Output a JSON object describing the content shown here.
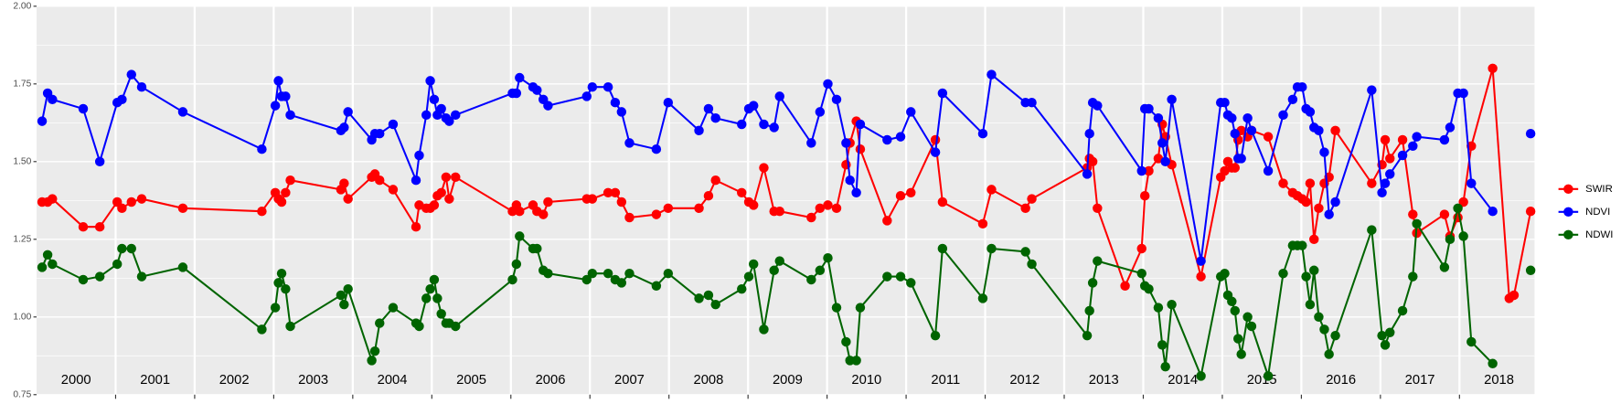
{
  "chart_data": {
    "type": "line",
    "xlim": [
      2000,
      2018.95
    ],
    "ylim": [
      0.75,
      2.0
    ],
    "yticks": [
      {
        "value": 0.75,
        "label": "0.75"
      },
      {
        "value": 1.0,
        "label": "1.00"
      },
      {
        "value": 1.25,
        "label": "1.25"
      },
      {
        "value": 1.5,
        "label": "1.50"
      },
      {
        "value": 1.75,
        "label": "1.75"
      },
      {
        "value": 2.0,
        "label": "2.00"
      }
    ],
    "yminor": [
      0.875,
      1.125,
      1.375,
      1.625,
      1.875
    ],
    "xgrid": [
      2001,
      2002,
      2003,
      2004,
      2005,
      2006,
      2007,
      2008,
      2009,
      2010,
      2011,
      2012,
      2013,
      2014,
      2015,
      2016,
      2017,
      2018
    ],
    "year_labels": [
      {
        "value": 2000.5,
        "label": "2000"
      },
      {
        "value": 2001.5,
        "label": "2001"
      },
      {
        "value": 2002.5,
        "label": "2002"
      },
      {
        "value": 2003.5,
        "label": "2003"
      },
      {
        "value": 2004.5,
        "label": "2004"
      },
      {
        "value": 2005.5,
        "label": "2005"
      },
      {
        "value": 2006.5,
        "label": "2006"
      },
      {
        "value": 2007.5,
        "label": "2007"
      },
      {
        "value": 2008.5,
        "label": "2008"
      },
      {
        "value": 2009.5,
        "label": "2009"
      },
      {
        "value": 2010.5,
        "label": "2010"
      },
      {
        "value": 2011.5,
        "label": "2011"
      },
      {
        "value": 2012.5,
        "label": "2012"
      },
      {
        "value": 2013.5,
        "label": "2013"
      },
      {
        "value": 2014.5,
        "label": "2014"
      },
      {
        "value": 2015.5,
        "label": "2015"
      },
      {
        "value": 2016.5,
        "label": "2016"
      },
      {
        "value": 2017.5,
        "label": "2017"
      },
      {
        "value": 2018.5,
        "label": "2018"
      }
    ],
    "grid": true,
    "legend": "right",
    "series": [
      {
        "name": "SWIR",
        "color": "#ff0000",
        "x": [
          2000.07,
          2000.14,
          2000.2,
          2000.59,
          2000.8,
          2001.02,
          2001.08,
          2001.2,
          2001.33,
          2001.85,
          2002.85,
          2003.02,
          2003.06,
          2003.1,
          2003.15,
          2003.21,
          2003.85,
          2003.89,
          2003.94,
          2004.24,
          2004.28,
          2004.34,
          2004.51,
          2004.8,
          2004.84,
          2004.93,
          2004.98,
          2005.03,
          2005.07,
          2005.12,
          2005.18,
          2005.22,
          2005.3,
          2006.02,
          2006.07,
          2006.11,
          2006.28,
          2006.33,
          2006.41,
          2006.47,
          2006.96,
          2007.03,
          2007.23,
          2007.32,
          2007.4,
          2007.5,
          2007.84,
          2007.99,
          2008.38,
          2008.5,
          2008.59,
          2008.92,
          2009.01,
          2009.07,
          2009.2,
          2009.33,
          2009.4,
          2009.8,
          2009.91,
          2010.01,
          2010.12,
          2010.24,
          2010.29,
          2010.37,
          2010.42,
          2010.76,
          2010.93,
          2011.06,
          2011.37,
          2011.46,
          2011.97,
          2012.08,
          2012.51,
          2012.59,
          2013.29,
          2013.32,
          2013.36,
          2013.42,
          2013.77,
          2013.98,
          2014.02,
          2014.07,
          2014.19,
          2014.24,
          2014.28,
          2014.36,
          2014.73,
          2014.98,
          2015.03,
          2015.07,
          2015.12,
          2015.16,
          2015.2,
          2015.24,
          2015.32,
          2015.37,
          2015.58,
          2015.77,
          2015.89,
          2015.95,
          2016.01,
          2016.06,
          2016.11,
          2016.16,
          2016.22,
          2016.29,
          2016.35,
          2016.43,
          2016.89,
          2017.02,
          2017.06,
          2017.12,
          2017.28,
          2017.41,
          2017.46,
          2017.81,
          2017.88,
          2017.98,
          2018.05,
          2018.15,
          2018.42,
          2018.63,
          2018.69,
          2018.9
        ],
        "values": [
          1.37,
          1.37,
          1.38,
          1.29,
          1.29,
          1.37,
          1.35,
          1.37,
          1.38,
          1.35,
          1.34,
          1.4,
          1.38,
          1.37,
          1.4,
          1.44,
          1.41,
          1.43,
          1.38,
          1.45,
          1.46,
          1.44,
          1.41,
          1.29,
          1.36,
          1.35,
          1.35,
          1.36,
          1.39,
          1.4,
          1.45,
          1.38,
          1.45,
          1.34,
          1.36,
          1.34,
          1.36,
          1.34,
          1.33,
          1.37,
          1.38,
          1.38,
          1.4,
          1.4,
          1.37,
          1.32,
          1.33,
          1.35,
          1.35,
          1.39,
          1.44,
          1.4,
          1.37,
          1.36,
          1.48,
          1.34,
          1.34,
          1.32,
          1.35,
          1.36,
          1.35,
          1.49,
          1.56,
          1.63,
          1.54,
          1.31,
          1.39,
          1.4,
          1.57,
          1.37,
          1.3,
          1.41,
          1.35,
          1.38,
          1.48,
          1.51,
          1.5,
          1.35,
          1.1,
          1.22,
          1.39,
          1.47,
          1.51,
          1.62,
          1.58,
          1.49,
          1.13,
          1.45,
          1.47,
          1.5,
          1.48,
          1.48,
          1.57,
          1.6,
          1.58,
          1.6,
          1.58,
          1.43,
          1.4,
          1.39,
          1.38,
          1.37,
          1.43,
          1.25,
          1.35,
          1.43,
          1.45,
          1.6,
          1.43,
          1.49,
          1.57,
          1.51,
          1.57,
          1.33,
          1.27,
          1.33,
          1.26,
          1.32,
          1.37,
          1.55,
          1.8,
          1.06,
          1.07,
          1.34
        ]
      },
      {
        "name": "NDVI",
        "color": "#0000ff",
        "x": [
          2000.07,
          2000.14,
          2000.2,
          2000.59,
          2000.8,
          2001.02,
          2001.08,
          2001.2,
          2001.33,
          2001.85,
          2002.85,
          2003.02,
          2003.06,
          2003.1,
          2003.15,
          2003.21,
          2003.85,
          2003.89,
          2003.94,
          2004.24,
          2004.28,
          2004.34,
          2004.51,
          2004.8,
          2004.84,
          2004.93,
          2004.98,
          2005.03,
          2005.07,
          2005.12,
          2005.18,
          2005.22,
          2005.3,
          2006.02,
          2006.07,
          2006.11,
          2006.28,
          2006.33,
          2006.41,
          2006.47,
          2006.96,
          2007.03,
          2007.23,
          2007.32,
          2007.4,
          2007.5,
          2007.84,
          2007.99,
          2008.38,
          2008.5,
          2008.59,
          2008.92,
          2009.01,
          2009.07,
          2009.2,
          2009.33,
          2009.4,
          2009.8,
          2009.91,
          2010.01,
          2010.12,
          2010.24,
          2010.29,
          2010.37,
          2010.42,
          2010.76,
          2010.93,
          2011.06,
          2011.37,
          2011.46,
          2011.97,
          2012.08,
          2012.51,
          2012.59,
          2013.29,
          2013.32,
          2013.36,
          2013.42,
          2013.98,
          2014.02,
          2014.07,
          2014.19,
          2014.24,
          2014.28,
          2014.36,
          2014.73,
          2014.98,
          2015.03,
          2015.07,
          2015.12,
          2015.16,
          2015.2,
          2015.24,
          2015.32,
          2015.37,
          2015.58,
          2015.77,
          2015.89,
          2015.95,
          2016.01,
          2016.06,
          2016.11,
          2016.16,
          2016.22,
          2016.29,
          2016.35,
          2016.43,
          2016.89,
          2017.02,
          2017.06,
          2017.12,
          2017.28,
          2017.41,
          2017.46,
          2017.81,
          2017.88,
          2017.98,
          2018.05,
          2018.15,
          2018.42,
          2018.63,
          2018.9
        ],
        "values": [
          1.63,
          1.72,
          1.7,
          1.67,
          1.5,
          1.69,
          1.7,
          1.78,
          1.74,
          1.66,
          1.54,
          1.68,
          1.76,
          1.71,
          1.71,
          1.65,
          1.6,
          1.61,
          1.66,
          1.57,
          1.59,
          1.59,
          1.62,
          1.44,
          1.52,
          1.65,
          1.76,
          1.7,
          1.65,
          1.67,
          1.64,
          1.63,
          1.65,
          1.72,
          1.72,
          1.77,
          1.74,
          1.73,
          1.7,
          1.68,
          1.71,
          1.74,
          1.74,
          1.69,
          1.66,
          1.56,
          1.54,
          1.69,
          1.6,
          1.67,
          1.64,
          1.62,
          1.67,
          1.68,
          1.62,
          1.61,
          1.71,
          1.56,
          1.66,
          1.75,
          1.7,
          1.56,
          1.44,
          1.4,
          1.62,
          1.57,
          1.58,
          1.66,
          1.53,
          1.72,
          1.59,
          1.78,
          1.69,
          1.69,
          1.46,
          1.59,
          1.69,
          1.68,
          1.47,
          1.67,
          1.67,
          1.64,
          1.56,
          1.5,
          1.7,
          1.18,
          1.69,
          1.69,
          1.65,
          1.64,
          1.59,
          1.51,
          1.51,
          1.64,
          1.6,
          1.47,
          1.65,
          1.7,
          1.74,
          1.74,
          1.67,
          1.66,
          1.61,
          1.6,
          1.53,
          1.33,
          1.37,
          1.73,
          1.4,
          1.43,
          1.46,
          1.52,
          1.55,
          1.58,
          1.57,
          1.61,
          1.72,
          1.72,
          1.43,
          1.34,
          null,
          1.59
        ]
      },
      {
        "name": "NDWI",
        "color": "#006400",
        "x": [
          2000.07,
          2000.14,
          2000.2,
          2000.59,
          2000.8,
          2001.02,
          2001.08,
          2001.2,
          2001.33,
          2001.85,
          2002.85,
          2003.02,
          2003.06,
          2003.1,
          2003.15,
          2003.21,
          2003.85,
          2003.89,
          2003.94,
          2004.24,
          2004.28,
          2004.34,
          2004.51,
          2004.8,
          2004.84,
          2004.93,
          2004.98,
          2005.03,
          2005.07,
          2005.12,
          2005.18,
          2005.22,
          2005.3,
          2006.02,
          2006.07,
          2006.11,
          2006.28,
          2006.33,
          2006.41,
          2006.47,
          2006.96,
          2007.03,
          2007.23,
          2007.32,
          2007.4,
          2007.5,
          2007.84,
          2007.99,
          2008.38,
          2008.5,
          2008.59,
          2008.92,
          2009.01,
          2009.07,
          2009.2,
          2009.33,
          2009.4,
          2009.8,
          2009.91,
          2010.01,
          2010.12,
          2010.24,
          2010.29,
          2010.37,
          2010.42,
          2010.76,
          2010.93,
          2011.06,
          2011.37,
          2011.46,
          2011.97,
          2012.08,
          2012.51,
          2012.59,
          2013.29,
          2013.32,
          2013.36,
          2013.42,
          2013.98,
          2014.02,
          2014.07,
          2014.19,
          2014.24,
          2014.28,
          2014.36,
          2014.73,
          2014.98,
          2015.03,
          2015.07,
          2015.12,
          2015.16,
          2015.2,
          2015.24,
          2015.32,
          2015.37,
          2015.58,
          2015.77,
          2015.89,
          2015.95,
          2016.01,
          2016.06,
          2016.11,
          2016.16,
          2016.22,
          2016.29,
          2016.35,
          2016.43,
          2016.89,
          2017.02,
          2017.06,
          2017.12,
          2017.28,
          2017.41,
          2017.46,
          2017.81,
          2017.88,
          2017.98,
          2018.05,
          2018.15,
          2018.42,
          2018.63,
          2018.9
        ],
        "values": [
          1.16,
          1.2,
          1.17,
          1.12,
          1.13,
          1.17,
          1.22,
          1.22,
          1.13,
          1.16,
          0.96,
          1.03,
          1.11,
          1.14,
          1.09,
          0.97,
          1.07,
          1.04,
          1.09,
          0.86,
          0.89,
          0.98,
          1.03,
          0.98,
          0.97,
          1.06,
          1.09,
          1.12,
          1.06,
          1.01,
          0.98,
          0.98,
          0.97,
          1.12,
          1.17,
          1.26,
          1.22,
          1.22,
          1.15,
          1.14,
          1.12,
          1.14,
          1.14,
          1.12,
          1.11,
          1.14,
          1.1,
          1.14,
          1.06,
          1.07,
          1.04,
          1.09,
          1.13,
          1.17,
          0.96,
          1.15,
          1.18,
          1.12,
          1.15,
          1.19,
          1.03,
          0.92,
          0.86,
          0.86,
          1.03,
          1.13,
          1.13,
          1.11,
          0.94,
          1.22,
          1.06,
          1.22,
          1.21,
          1.17,
          0.94,
          1.02,
          1.11,
          1.18,
          1.14,
          1.1,
          1.09,
          1.03,
          0.91,
          0.84,
          1.04,
          0.81,
          1.13,
          1.14,
          1.07,
          1.05,
          1.02,
          0.93,
          0.88,
          1.0,
          0.97,
          0.81,
          1.14,
          1.23,
          1.23,
          1.23,
          1.13,
          1.04,
          1.15,
          1.0,
          0.96,
          0.88,
          0.94,
          1.28,
          0.94,
          0.91,
          0.95,
          1.02,
          1.13,
          1.3,
          1.16,
          1.25,
          1.35,
          1.26,
          0.92,
          0.85,
          null,
          1.15
        ]
      }
    ]
  }
}
